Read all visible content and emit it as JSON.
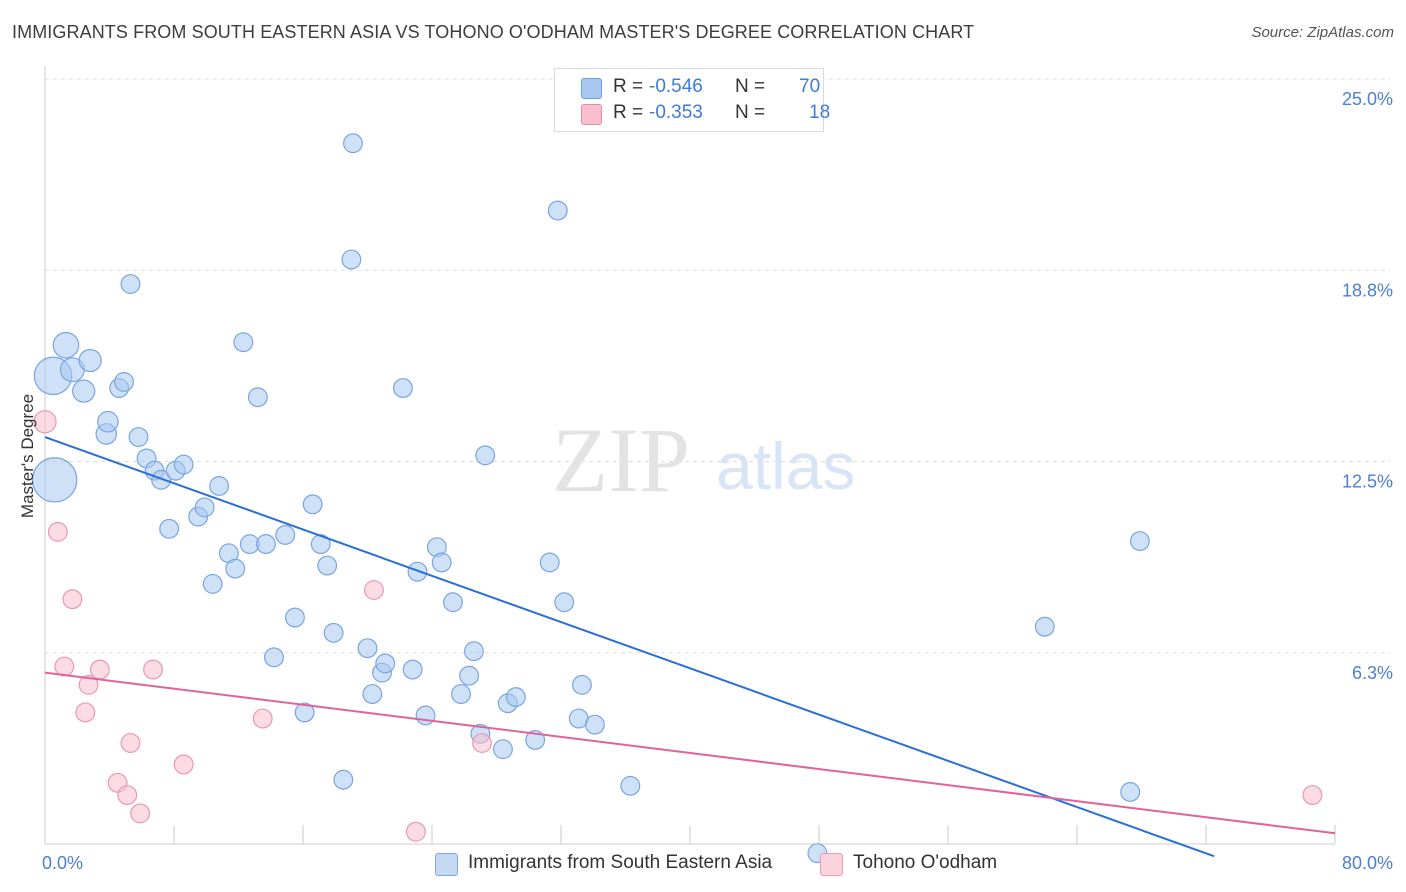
{
  "header": {
    "title": "IMMIGRANTS FROM SOUTH EASTERN ASIA VS TOHONO O'ODHAM MASTER'S DEGREE CORRELATION CHART",
    "source": "Source: ZipAtlas.com"
  },
  "watermark": {
    "zip": "ZIP",
    "atlas": "atlas"
  },
  "legend": {
    "rows": [
      {
        "r_label": "R =",
        "r_value": "-0.546",
        "n_label": "N =",
        "n_value": "70",
        "color": "#a8c8f0",
        "border": "#6f9fdc"
      },
      {
        "r_label": "R =",
        "r_value": "-0.353",
        "n_label": "N =",
        "n_value": "18",
        "color": "#f8c0cf",
        "border": "#e88aa6"
      }
    ]
  },
  "bottom_legend": {
    "items": [
      {
        "label": "Immigrants from South Eastern Asia",
        "color": "#c5d9f3",
        "border": "#7fa6de"
      },
      {
        "label": "Tohono O'odham",
        "color": "#fbd3de",
        "border": "#ec9ab3"
      }
    ]
  },
  "chart_data": {
    "type": "scatter",
    "ylabel": "Master's Degree",
    "x_range": [
      0,
      80
    ],
    "y_range": [
      0,
      25
    ],
    "y_ticks": [
      {
        "value": 25.0,
        "label": "25.0%"
      },
      {
        "value": 18.75,
        "label": "18.8%"
      },
      {
        "value": 12.5,
        "label": "12.5%"
      },
      {
        "value": 6.25,
        "label": "6.3%"
      }
    ],
    "x_tick_labels": {
      "left": "0.0%",
      "right": "80.0%"
    },
    "grid": true,
    "colors": {
      "blue_fill": "rgba(168,200,240,0.55)",
      "blue_stroke": "#7aa5e0",
      "blue_line": "#2a6fd6",
      "pink_fill": "rgba(248,192,207,0.55)",
      "pink_stroke": "#ea98b1",
      "pink_line": "#e0649a"
    },
    "series": [
      {
        "name": "Immigrants from South Eastern Asia",
        "points": [
          [
            0.5,
            15.3,
            2.2
          ],
          [
            0.6,
            11.9,
            2.6
          ],
          [
            1.3,
            16.3,
            1.5
          ],
          [
            1.7,
            15.5,
            1.4
          ],
          [
            2.4,
            14.8,
            1.3
          ],
          [
            2.8,
            15.8,
            1.3
          ],
          [
            3.8,
            13.4,
            1.2
          ],
          [
            3.9,
            13.8,
            1.2
          ],
          [
            4.6,
            14.9,
            1.1
          ],
          [
            4.9,
            15.1,
            1.1
          ],
          [
            5.3,
            18.3,
            1.1
          ],
          [
            5.8,
            13.3,
            1.1
          ],
          [
            6.3,
            12.6,
            1.1
          ],
          [
            6.8,
            12.2,
            1.1
          ],
          [
            7.2,
            11.9,
            1.1
          ],
          [
            7.7,
            10.3,
            1.1
          ],
          [
            8.1,
            12.2,
            1.1
          ],
          [
            8.6,
            12.4,
            1.1
          ],
          [
            9.5,
            10.7,
            1.1
          ],
          [
            9.9,
            11.0,
            1.1
          ],
          [
            10.4,
            8.5,
            1.1
          ],
          [
            10.8,
            11.7,
            1.1
          ],
          [
            11.4,
            9.5,
            1.1
          ],
          [
            11.8,
            9.0,
            1.1
          ],
          [
            12.3,
            16.4,
            1.1
          ],
          [
            12.7,
            9.8,
            1.1
          ],
          [
            13.2,
            14.6,
            1.1
          ],
          [
            13.7,
            9.8,
            1.1
          ],
          [
            14.2,
            6.1,
            1.1
          ],
          [
            14.9,
            10.1,
            1.1
          ],
          [
            15.5,
            7.4,
            1.1
          ],
          [
            16.1,
            4.3,
            1.1
          ],
          [
            16.6,
            11.1,
            1.1
          ],
          [
            17.1,
            9.8,
            1.1
          ],
          [
            17.5,
            9.1,
            1.1
          ],
          [
            17.9,
            6.9,
            1.1
          ],
          [
            18.5,
            2.1,
            1.1
          ],
          [
            19.0,
            19.1,
            1.1
          ],
          [
            19.1,
            22.9,
            1.1
          ],
          [
            20.0,
            6.4,
            1.1
          ],
          [
            20.3,
            4.9,
            1.1
          ],
          [
            20.9,
            5.6,
            1.1
          ],
          [
            21.1,
            5.9,
            1.1
          ],
          [
            22.2,
            14.9,
            1.1
          ],
          [
            22.8,
            5.7,
            1.1
          ],
          [
            23.1,
            8.9,
            1.1
          ],
          [
            23.6,
            4.2,
            1.1
          ],
          [
            24.3,
            9.7,
            1.1
          ],
          [
            24.6,
            9.2,
            1.1
          ],
          [
            25.3,
            7.9,
            1.1
          ],
          [
            25.8,
            4.9,
            1.1
          ],
          [
            26.3,
            5.5,
            1.1
          ],
          [
            26.6,
            6.3,
            1.1
          ],
          [
            27.0,
            3.6,
            1.1
          ],
          [
            27.3,
            12.7,
            1.1
          ],
          [
            28.4,
            3.1,
            1.1
          ],
          [
            28.7,
            4.6,
            1.1
          ],
          [
            29.2,
            4.8,
            1.1
          ],
          [
            30.4,
            3.4,
            1.1
          ],
          [
            31.3,
            9.2,
            1.1
          ],
          [
            31.8,
            20.7,
            1.1
          ],
          [
            32.2,
            7.9,
            1.1
          ],
          [
            33.1,
            4.1,
            1.1
          ],
          [
            33.3,
            5.2,
            1.1
          ],
          [
            34.1,
            3.9,
            1.1
          ],
          [
            36.3,
            1.9,
            1.1
          ],
          [
            47.9,
            -0.3,
            1.1
          ],
          [
            62.0,
            7.1,
            1.1
          ],
          [
            67.3,
            1.7,
            1.1
          ],
          [
            67.9,
            9.9,
            1.1
          ]
        ],
        "trend": {
          "x": [
            0,
            72.5
          ],
          "y": [
            13.3,
            -0.4
          ]
        }
      },
      {
        "name": "Tohono O'odham",
        "points": [
          [
            0.0,
            13.8,
            1.3
          ],
          [
            0.8,
            10.2,
            1.1
          ],
          [
            1.2,
            5.8,
            1.1
          ],
          [
            1.7,
            8.0,
            1.1
          ],
          [
            2.5,
            4.3,
            1.1
          ],
          [
            2.7,
            5.2,
            1.1
          ],
          [
            3.4,
            5.7,
            1.1
          ],
          [
            4.5,
            2.0,
            1.1
          ],
          [
            5.1,
            1.6,
            1.1
          ],
          [
            5.3,
            3.3,
            1.1
          ],
          [
            5.9,
            1.0,
            1.1
          ],
          [
            6.7,
            5.7,
            1.1
          ],
          [
            8.6,
            2.6,
            1.1
          ],
          [
            13.5,
            4.1,
            1.1
          ],
          [
            20.4,
            8.3,
            1.1
          ],
          [
            23.0,
            0.4,
            1.1
          ],
          [
            27.1,
            3.3,
            1.1
          ],
          [
            78.6,
            1.6,
            1.1
          ]
        ],
        "trend": {
          "x": [
            0,
            80
          ],
          "y": [
            5.6,
            0.35
          ]
        }
      }
    ]
  }
}
